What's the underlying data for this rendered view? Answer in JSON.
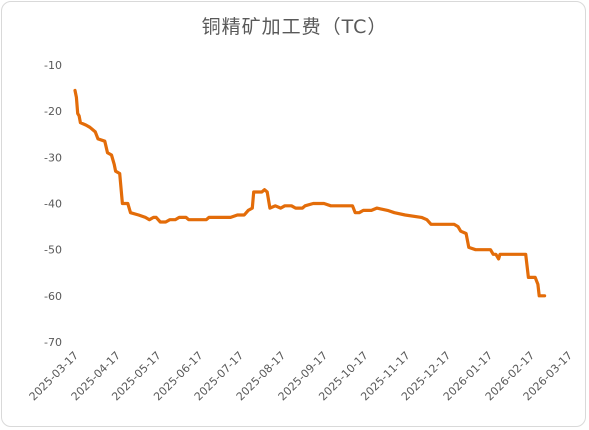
{
  "chart_data": {
    "type": "line",
    "title": "铜精矿加工费（TC）",
    "ylim": [
      -70,
      -10
    ],
    "yticks": [
      -10,
      -20,
      -30,
      -40,
      -50,
      -60,
      -70
    ],
    "x_tick_labels": [
      "2025-03-17",
      "2025-04-17",
      "2025-05-17",
      "2025-06-17",
      "2025-07-17",
      "2025-08-17",
      "2025-09-17",
      "2025-10-17",
      "2025-11-17",
      "2025-12-17",
      "2026-01-17",
      "2026-02-17",
      "2026-03-17"
    ],
    "line_color": "#E36C09",
    "grid": false,
    "legend": "none",
    "series": [
      {
        "points": [
          {
            "x": "2025-03-17",
            "y": -15.5
          },
          {
            "x": "2025-03-18",
            "y": -17
          },
          {
            "x": "2025-03-19",
            "y": -20.5
          },
          {
            "x": "2025-03-20",
            "y": -21
          },
          {
            "x": "2025-03-21",
            "y": -22.5
          },
          {
            "x": "2025-03-25",
            "y": -23
          },
          {
            "x": "2025-03-28",
            "y": -23.5
          },
          {
            "x": "2025-04-01",
            "y": -24.5
          },
          {
            "x": "2025-04-03",
            "y": -26
          },
          {
            "x": "2025-04-08",
            "y": -26.5
          },
          {
            "x": "2025-04-10",
            "y": -29
          },
          {
            "x": "2025-04-13",
            "y": -29.5
          },
          {
            "x": "2025-04-15",
            "y": -31.5
          },
          {
            "x": "2025-04-16",
            "y": -33
          },
          {
            "x": "2025-04-19",
            "y": -33.5
          },
          {
            "x": "2025-04-21",
            "y": -40
          },
          {
            "x": "2025-04-25",
            "y": -40
          },
          {
            "x": "2025-04-27",
            "y": -42
          },
          {
            "x": "2025-05-03",
            "y": -42.5
          },
          {
            "x": "2025-05-08",
            "y": -43
          },
          {
            "x": "2025-05-11",
            "y": -43.5
          },
          {
            "x": "2025-05-14",
            "y": -43
          },
          {
            "x": "2025-05-16",
            "y": -43
          },
          {
            "x": "2025-05-19",
            "y": -44
          },
          {
            "x": "2025-05-23",
            "y": -44
          },
          {
            "x": "2025-05-26",
            "y": -43.5
          },
          {
            "x": "2025-05-30",
            "y": -43.5
          },
          {
            "x": "2025-06-02",
            "y": -43
          },
          {
            "x": "2025-06-07",
            "y": -43
          },
          {
            "x": "2025-06-09",
            "y": -43.5
          },
          {
            "x": "2025-06-22",
            "y": -43.5
          },
          {
            "x": "2025-06-24",
            "y": -43
          },
          {
            "x": "2025-07-10",
            "y": -43
          },
          {
            "x": "2025-07-15",
            "y": -42.5
          },
          {
            "x": "2025-07-20",
            "y": -42.5
          },
          {
            "x": "2025-07-23",
            "y": -41.5
          },
          {
            "x": "2025-07-26",
            "y": -41
          },
          {
            "x": "2025-07-27",
            "y": -37.5
          },
          {
            "x": "2025-08-02",
            "y": -37.5
          },
          {
            "x": "2025-08-04",
            "y": -37
          },
          {
            "x": "2025-08-06",
            "y": -37.5
          },
          {
            "x": "2025-08-08",
            "y": -41
          },
          {
            "x": "2025-08-12",
            "y": -40.5
          },
          {
            "x": "2025-08-16",
            "y": -41
          },
          {
            "x": "2025-08-19",
            "y": -40.5
          },
          {
            "x": "2025-08-24",
            "y": -40.5
          },
          {
            "x": "2025-08-27",
            "y": -41
          },
          {
            "x": "2025-09-01",
            "y": -41
          },
          {
            "x": "2025-09-03",
            "y": -40.5
          },
          {
            "x": "2025-09-09",
            "y": -40
          },
          {
            "x": "2025-09-17",
            "y": -40
          },
          {
            "x": "2025-09-22",
            "y": -40.5
          },
          {
            "x": "2025-10-08",
            "y": -40.5
          },
          {
            "x": "2025-10-10",
            "y": -42
          },
          {
            "x": "2025-10-13",
            "y": -42
          },
          {
            "x": "2025-10-16",
            "y": -41.5
          },
          {
            "x": "2025-10-22",
            "y": -41.5
          },
          {
            "x": "2025-10-26",
            "y": -41
          },
          {
            "x": "2025-11-03",
            "y": -41.5
          },
          {
            "x": "2025-11-08",
            "y": -42
          },
          {
            "x": "2025-11-16",
            "y": -42.5
          },
          {
            "x": "2025-11-28",
            "y": -43
          },
          {
            "x": "2025-12-02",
            "y": -43.5
          },
          {
            "x": "2025-12-05",
            "y": -44.5
          },
          {
            "x": "2025-12-22",
            "y": -44.5
          },
          {
            "x": "2025-12-25",
            "y": -45
          },
          {
            "x": "2025-12-27",
            "y": -46
          },
          {
            "x": "2025-12-31",
            "y": -46.5
          },
          {
            "x": "2026-01-02",
            "y": -49.5
          },
          {
            "x": "2026-01-07",
            "y": -50
          },
          {
            "x": "2026-01-18",
            "y": -50
          },
          {
            "x": "2026-01-20",
            "y": -51
          },
          {
            "x": "2026-01-22",
            "y": -51
          },
          {
            "x": "2026-01-24",
            "y": -52
          },
          {
            "x": "2026-01-25",
            "y": -51
          },
          {
            "x": "2026-02-13",
            "y": -51
          },
          {
            "x": "2026-02-15",
            "y": -56
          },
          {
            "x": "2026-02-20",
            "y": -56
          },
          {
            "x": "2026-02-22",
            "y": -57.5
          },
          {
            "x": "2026-02-23",
            "y": -60
          },
          {
            "x": "2026-02-27",
            "y": -60
          }
        ]
      }
    ]
  }
}
